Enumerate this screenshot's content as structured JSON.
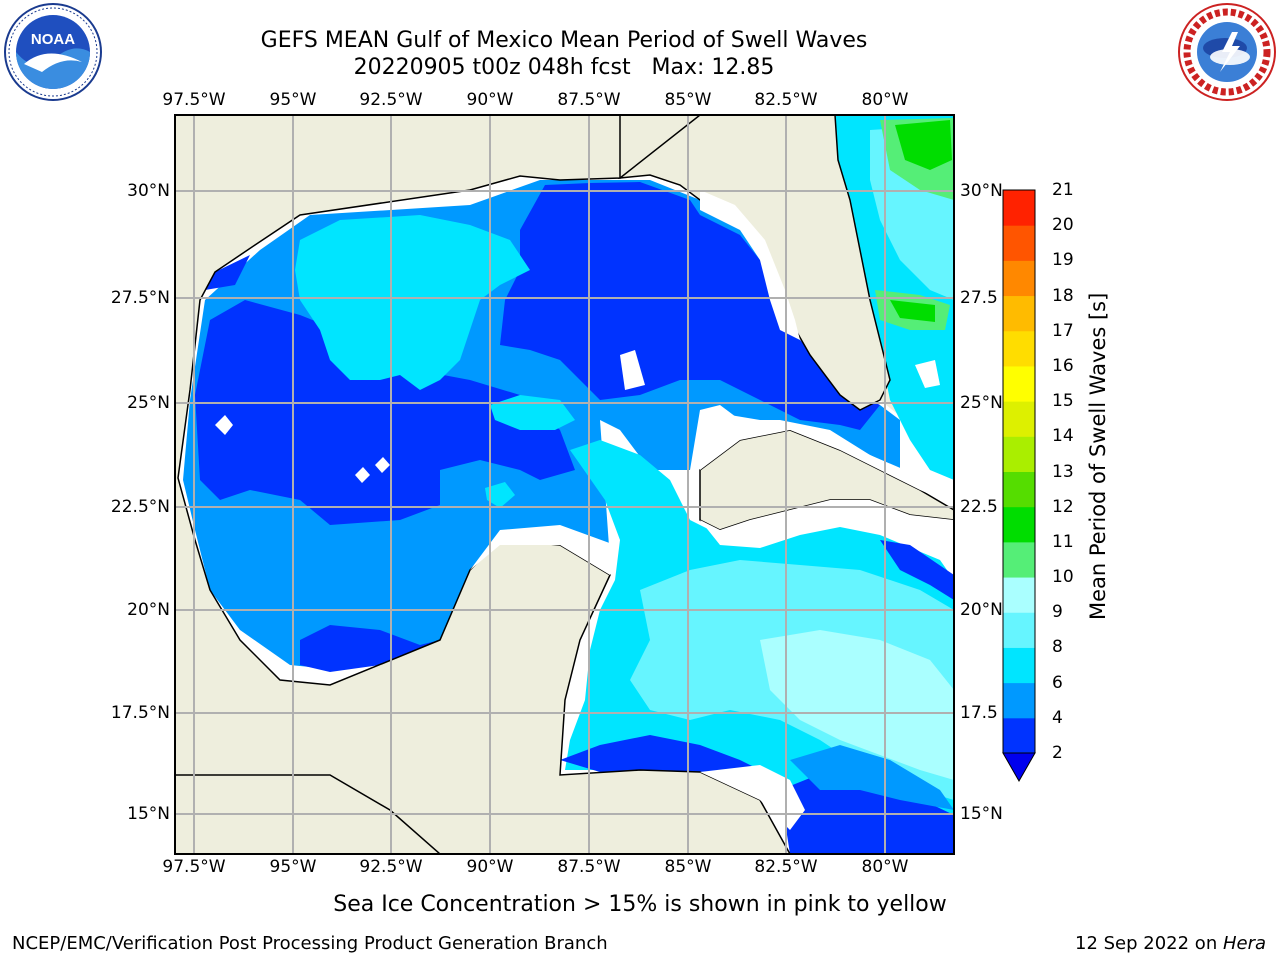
{
  "title": {
    "line1": "GEFS MEAN Gulf of Mexico Mean Period of Swell Waves",
    "line2": "20220905 t00z 048h fcst   Max: 12.85"
  },
  "logos": {
    "left": {
      "icon": "noaa-logo",
      "text": "NOAA"
    },
    "right": {
      "icon": "national-weather-service-logo"
    }
  },
  "map": {
    "lon_ticks": [
      "97.5°W",
      "95°W",
      "92.5°W",
      "90°W",
      "87.5°W",
      "85°W",
      "82.5°W",
      "80°W"
    ],
    "lat_ticks_left": [
      "30°N",
      "27.5°N",
      "25°N",
      "22.5°N",
      "20°N",
      "17.5°N",
      "15°N"
    ],
    "lat_ticks_right": [
      "30°N",
      "27.5",
      "25°N",
      "22.5",
      "20°N",
      "17.5",
      "15°N"
    ],
    "land_color": "#eeeedd",
    "grid_color": "#b0b0b0"
  },
  "colorbar": {
    "label": "Mean Period of Swell Waves [s]",
    "ticks": [
      "2",
      "4",
      "6",
      "8",
      "9",
      "10",
      "11",
      "12",
      "13",
      "14",
      "15",
      "16",
      "17",
      "18",
      "19",
      "20",
      "21"
    ],
    "colors": [
      "#0033ff",
      "#0099ff",
      "#00e5ff",
      "#66f5ff",
      "#aaffff",
      "#55ee77",
      "#00dd00",
      "#55dd00",
      "#aaee00",
      "#ddf000",
      "#ffff00",
      "#ffdd00",
      "#ffbb00",
      "#ff8800",
      "#ff5500",
      "#ff2200",
      "#ff0000"
    ],
    "extend_color": "#0000ee"
  },
  "caption": "Sea Ice Concentration > 15% is shown in pink to yellow",
  "footer": {
    "left": "NCEP/EMC/Verification Post Processing Product Generation Branch",
    "right_date": "12 Sep 2022 on ",
    "right_host": "Hera"
  }
}
